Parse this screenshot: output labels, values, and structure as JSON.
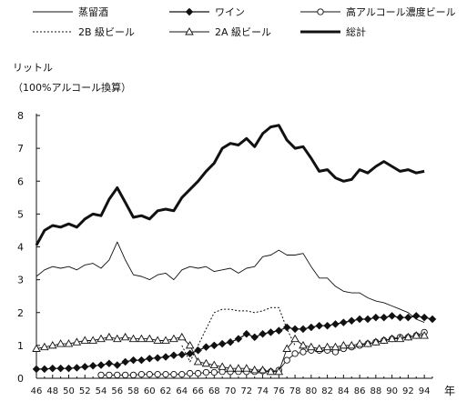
{
  "chart_data": {
    "type": "line",
    "title": "",
    "ylabel": "リットル",
    "ylabel_note": "（100%アルコール換算）",
    "xlabel": "年",
    "x_ticks": [
      "46",
      "48",
      "50",
      "52",
      "54",
      "56",
      "58",
      "60",
      "62",
      "64",
      "66",
      "68",
      "70",
      "72",
      "74",
      "76",
      "78",
      "80",
      "82",
      "84",
      "86",
      "88",
      "90",
      "92",
      "94"
    ],
    "y_ticks": [
      "0",
      "1",
      "2",
      "3",
      "4",
      "5",
      "6",
      "7",
      "8"
    ],
    "ylim": [
      0,
      8
    ],
    "xlim": [
      46,
      95
    ],
    "grid": false,
    "legend_position": "top",
    "series": [
      {
        "name": "蒸留酒",
        "style": "thin-solid",
        "x": [
          46,
          47,
          48,
          49,
          50,
          51,
          52,
          53,
          54,
          55,
          56,
          57,
          58,
          59,
          60,
          61,
          62,
          63,
          64,
          65,
          66,
          67,
          68,
          69,
          70,
          71,
          72,
          73,
          74,
          75,
          76,
          77,
          78,
          79,
          80,
          81,
          82,
          83,
          84,
          85,
          86,
          87,
          88,
          89,
          90,
          91,
          92,
          93,
          94
        ],
        "values": [
          3.1,
          3.3,
          3.4,
          3.35,
          3.4,
          3.3,
          3.45,
          3.5,
          3.35,
          3.6,
          4.15,
          3.6,
          3.15,
          3.1,
          3.0,
          3.15,
          3.2,
          3.0,
          3.3,
          3.4,
          3.35,
          3.4,
          3.25,
          3.3,
          3.35,
          3.2,
          3.35,
          3.4,
          3.7,
          3.75,
          3.9,
          3.75,
          3.75,
          3.8,
          3.4,
          3.05,
          3.05,
          2.8,
          2.65,
          2.6,
          2.6,
          2.45,
          2.35,
          2.3,
          2.2,
          2.1,
          2.0,
          1.8,
          1.7
        ]
      },
      {
        "name": "ワイン",
        "style": "solid-filled-diamond",
        "x": [
          46,
          47,
          48,
          49,
          50,
          51,
          52,
          53,
          54,
          55,
          56,
          57,
          58,
          59,
          60,
          61,
          62,
          63,
          64,
          65,
          66,
          67,
          68,
          69,
          70,
          71,
          72,
          73,
          74,
          75,
          76,
          77,
          78,
          79,
          80,
          81,
          82,
          83,
          84,
          85,
          86,
          87,
          88,
          89,
          90,
          91,
          92,
          93,
          94,
          95
        ],
        "values": [
          0.28,
          0.28,
          0.3,
          0.3,
          0.3,
          0.32,
          0.35,
          0.38,
          0.4,
          0.45,
          0.4,
          0.5,
          0.55,
          0.55,
          0.6,
          0.62,
          0.65,
          0.7,
          0.72,
          0.75,
          0.85,
          0.95,
          1.0,
          1.05,
          1.1,
          1.2,
          1.35,
          1.25,
          1.35,
          1.4,
          1.45,
          1.55,
          1.5,
          1.5,
          1.55,
          1.6,
          1.6,
          1.65,
          1.7,
          1.75,
          1.8,
          1.8,
          1.85,
          1.85,
          1.9,
          1.85,
          1.85,
          1.9,
          1.85,
          1.8
        ]
      },
      {
        "name": "高アルコール濃度ビール",
        "style": "thin-open-circle",
        "x": [
          54,
          55,
          56,
          57,
          58,
          59,
          60,
          61,
          62,
          63,
          64,
          65,
          66,
          67,
          68,
          69,
          70,
          71,
          72,
          73,
          74,
          75,
          76,
          77,
          78,
          79,
          80,
          81,
          82,
          83,
          84,
          85,
          86,
          87,
          88,
          89,
          90,
          91,
          92,
          93,
          94
        ],
        "values": [
          0.1,
          0.1,
          0.1,
          0.1,
          0.1,
          0.12,
          0.12,
          0.12,
          0.12,
          0.12,
          0.12,
          0.15,
          0.15,
          0.18,
          0.18,
          0.2,
          0.2,
          0.2,
          0.2,
          0.2,
          0.22,
          0.2,
          0.25,
          0.55,
          0.75,
          0.8,
          0.85,
          0.85,
          0.85,
          0.8,
          0.9,
          0.95,
          1.0,
          1.05,
          1.1,
          1.15,
          1.2,
          1.25,
          1.25,
          1.3,
          1.4
        ]
      },
      {
        "name": "2B 級ビール",
        "style": "dotted",
        "x": [
          64,
          65,
          66,
          67,
          68,
          69,
          70,
          71,
          72,
          73,
          74,
          75,
          76,
          77,
          78
        ],
        "values": [
          1.0,
          0.5,
          1.0,
          1.5,
          2.0,
          2.1,
          2.1,
          2.05,
          2.05,
          2.0,
          2.05,
          2.15,
          2.15,
          1.5,
          1.0
        ]
      },
      {
        "name": "2A 級ビール",
        "style": "thin-open-triangle",
        "x": [
          46,
          47,
          48,
          49,
          50,
          51,
          52,
          53,
          54,
          55,
          56,
          57,
          58,
          59,
          60,
          61,
          62,
          63,
          64,
          65,
          66,
          67,
          68,
          69,
          70,
          71,
          72,
          73,
          74,
          75,
          76,
          77,
          78,
          79,
          80,
          81,
          82,
          83,
          84,
          85,
          86,
          87,
          88,
          89,
          90,
          91,
          92,
          93,
          94
        ],
        "values": [
          0.9,
          0.95,
          1.0,
          1.05,
          1.05,
          1.1,
          1.15,
          1.15,
          1.2,
          1.25,
          1.2,
          1.25,
          1.2,
          1.2,
          1.2,
          1.15,
          1.15,
          1.2,
          1.25,
          1.0,
          0.5,
          0.45,
          0.4,
          0.35,
          0.3,
          0.3,
          0.3,
          0.25,
          0.25,
          0.2,
          0.2,
          0.9,
          1.2,
          1.0,
          0.95,
          0.9,
          0.95,
          0.95,
          1.0,
          1.0,
          1.05,
          1.05,
          1.1,
          1.15,
          1.2,
          1.2,
          1.25,
          1.3,
          1.3
        ]
      },
      {
        "name": "総計",
        "style": "thick-solid",
        "x": [
          46,
          47,
          48,
          49,
          50,
          51,
          52,
          53,
          54,
          55,
          56,
          57,
          58,
          59,
          60,
          61,
          62,
          63,
          64,
          65,
          66,
          67,
          68,
          69,
          70,
          71,
          72,
          73,
          74,
          75,
          76,
          77,
          78,
          79,
          80,
          81,
          82,
          83,
          84,
          85,
          86,
          87,
          88,
          89,
          90,
          91,
          92,
          93,
          94
        ],
        "values": [
          4.05,
          4.5,
          4.65,
          4.6,
          4.7,
          4.6,
          4.85,
          5.0,
          4.95,
          5.45,
          5.8,
          5.35,
          4.9,
          4.95,
          4.85,
          5.1,
          5.15,
          5.1,
          5.5,
          5.75,
          6.0,
          6.3,
          6.55,
          7.0,
          7.15,
          7.1,
          7.3,
          7.05,
          7.45,
          7.65,
          7.7,
          7.25,
          7.0,
          7.05,
          6.7,
          6.3,
          6.35,
          6.1,
          6.0,
          6.05,
          6.35,
          6.25,
          6.45,
          6.6,
          6.45,
          6.3,
          6.35,
          6.25,
          6.3
        ]
      }
    ]
  },
  "colors": {
    "line": "#111111",
    "marker_fill_open": "#ffffff"
  }
}
